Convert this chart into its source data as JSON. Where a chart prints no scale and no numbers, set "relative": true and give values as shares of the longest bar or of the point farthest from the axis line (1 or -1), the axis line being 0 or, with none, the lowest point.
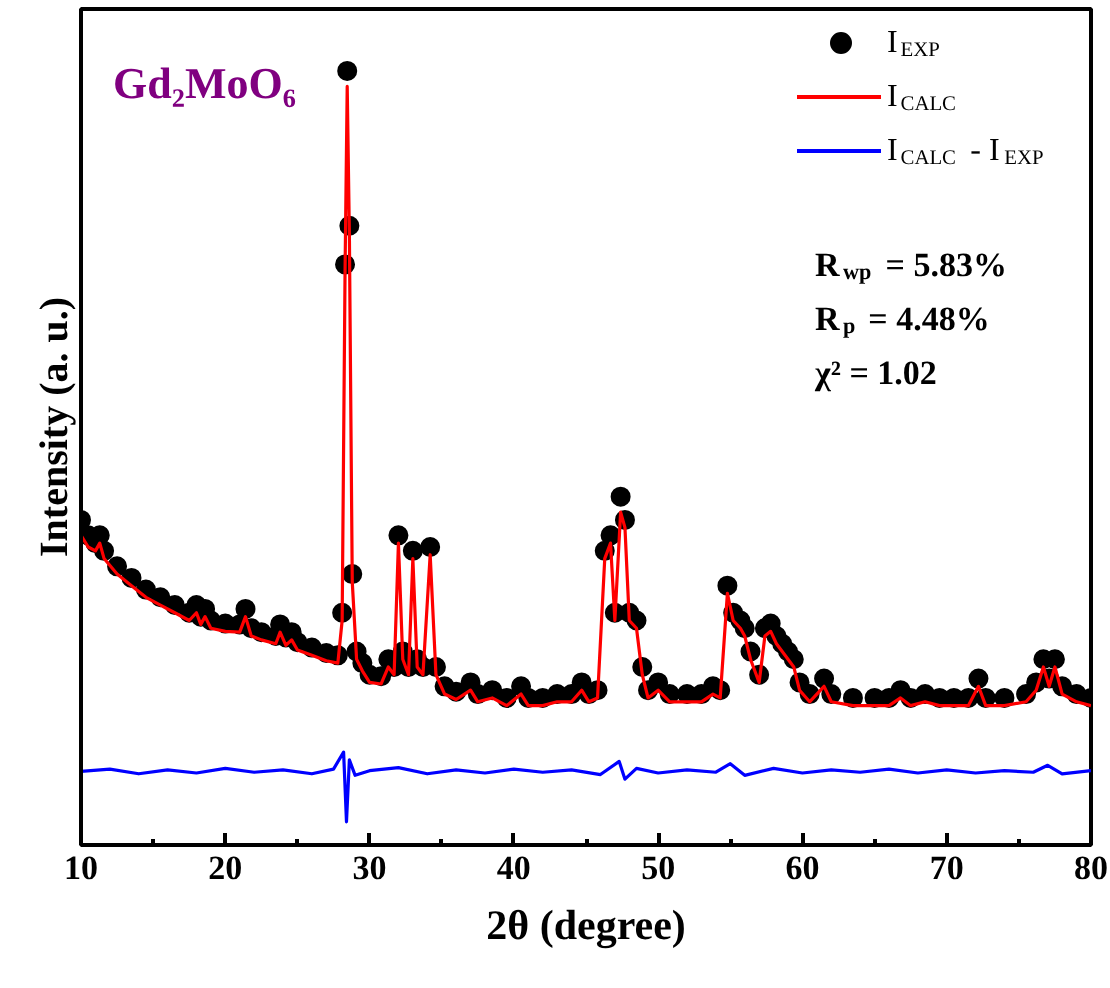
{
  "chart_data": {
    "type": "scatter",
    "title": "Gd₂MoO₆",
    "xlabel": "2θ (degree)",
    "ylabel": "Intensity (a. u.)",
    "relative": true,
    "tick_labels": "x",
    "legend": "top right",
    "xlim": [
      10,
      80
    ],
    "xticks": [
      10,
      20,
      30,
      40,
      50,
      60,
      70,
      80
    ],
    "annotations": [
      "R$_{wp}$ = 5.83%",
      "R$_{p}$ = 4.48%",
      "χ² = 1.02"
    ],
    "x": [
      10.0,
      10.5,
      11.0,
      11.3,
      11.6,
      12.5,
      13.5,
      14.5,
      15.5,
      16.5,
      17.5,
      18.0,
      18.3,
      18.6,
      19.0,
      20.0,
      21.0,
      21.4,
      21.8,
      22.5,
      23.5,
      23.8,
      24.2,
      24.6,
      25.0,
      26.0,
      27.0,
      27.8,
      28.1,
      28.3,
      28.45,
      28.6,
      28.8,
      29.1,
      29.5,
      30.0,
      30.8,
      31.3,
      31.7,
      32.0,
      32.3,
      32.7,
      33.0,
      33.3,
      33.7,
      34.2,
      34.6,
      35.2,
      36.0,
      37.0,
      37.5,
      38.5,
      39.5,
      40.5,
      41.0,
      42.0,
      43.0,
      44.0,
      44.7,
      45.2,
      45.8,
      46.3,
      46.7,
      47.0,
      47.4,
      47.7,
      48.0,
      48.5,
      48.9,
      49.3,
      50.0,
      50.8,
      52.0,
      53.0,
      53.8,
      54.3,
      54.8,
      55.2,
      55.7,
      56.0,
      56.4,
      57.0,
      57.4,
      57.8,
      58.2,
      58.6,
      59.0,
      59.4,
      59.8,
      60.5,
      61.5,
      62.0,
      63.5,
      65.0,
      66.0,
      66.8,
      67.5,
      68.5,
      69.5,
      70.5,
      71.5,
      72.2,
      72.7,
      74.0,
      75.5,
      76.2,
      76.7,
      77.1,
      77.5,
      78.0,
      79.0,
      80.0
    ],
    "series": [
      {
        "name": "I$_{EXP}$",
        "marker": "circle",
        "color": "#000000",
        "values": [
          0.42,
          0.4,
          0.39,
          0.4,
          0.38,
          0.36,
          0.345,
          0.33,
          0.32,
          0.31,
          0.3,
          0.31,
          0.295,
          0.305,
          0.29,
          0.286,
          0.285,
          0.305,
          0.28,
          0.275,
          0.27,
          0.285,
          0.268,
          0.275,
          0.262,
          0.255,
          0.248,
          0.245,
          0.3,
          0.75,
          1.0,
          0.8,
          0.35,
          0.25,
          0.235,
          0.22,
          0.218,
          0.24,
          0.23,
          0.4,
          0.25,
          0.23,
          0.38,
          0.24,
          0.23,
          0.385,
          0.23,
          0.205,
          0.198,
          0.21,
          0.195,
          0.2,
          0.19,
          0.205,
          0.19,
          0.19,
          0.195,
          0.195,
          0.21,
          0.195,
          0.2,
          0.38,
          0.4,
          0.3,
          0.45,
          0.42,
          0.3,
          0.29,
          0.23,
          0.2,
          0.21,
          0.195,
          0.195,
          0.195,
          0.205,
          0.2,
          0.335,
          0.3,
          0.29,
          0.28,
          0.25,
          0.22,
          0.28,
          0.286,
          0.27,
          0.26,
          0.25,
          0.24,
          0.21,
          0.195,
          0.215,
          0.195,
          0.19,
          0.19,
          0.19,
          0.2,
          0.19,
          0.195,
          0.19,
          0.19,
          0.19,
          0.215,
          0.19,
          0.19,
          0.195,
          0.21,
          0.24,
          0.215,
          0.24,
          0.205,
          0.195,
          0.19
        ]
      },
      {
        "name": "I$_{CALC}$",
        "type": "line",
        "color": "#ff0000",
        "values": [
          0.4,
          0.385,
          0.38,
          0.39,
          0.37,
          0.35,
          0.335,
          0.32,
          0.31,
          0.3,
          0.29,
          0.3,
          0.285,
          0.295,
          0.28,
          0.276,
          0.275,
          0.295,
          0.27,
          0.265,
          0.26,
          0.275,
          0.258,
          0.265,
          0.252,
          0.245,
          0.238,
          0.235,
          0.29,
          0.74,
          0.98,
          0.79,
          0.34,
          0.24,
          0.225,
          0.21,
          0.208,
          0.23,
          0.22,
          0.39,
          0.24,
          0.22,
          0.37,
          0.23,
          0.22,
          0.375,
          0.22,
          0.195,
          0.188,
          0.2,
          0.185,
          0.19,
          0.18,
          0.195,
          0.18,
          0.18,
          0.185,
          0.185,
          0.2,
          0.185,
          0.19,
          0.37,
          0.39,
          0.29,
          0.43,
          0.41,
          0.29,
          0.28,
          0.22,
          0.19,
          0.2,
          0.185,
          0.185,
          0.185,
          0.195,
          0.19,
          0.325,
          0.29,
          0.28,
          0.27,
          0.24,
          0.21,
          0.27,
          0.276,
          0.26,
          0.25,
          0.24,
          0.23,
          0.2,
          0.185,
          0.205,
          0.185,
          0.18,
          0.18,
          0.18,
          0.19,
          0.18,
          0.185,
          0.18,
          0.18,
          0.18,
          0.205,
          0.18,
          0.18,
          0.185,
          0.2,
          0.23,
          0.205,
          0.23,
          0.195,
          0.185,
          0.18
        ]
      },
      {
        "name": "I$_{CALC}$ - I$_{EXP}$",
        "type": "line",
        "color": "#0000ff",
        "x": [
          10,
          12,
          14,
          16,
          18,
          20,
          22,
          24,
          26,
          27.5,
          28.2,
          28.4,
          28.6,
          29,
          30,
          32,
          34,
          36,
          38,
          40,
          42,
          44,
          46,
          47.3,
          47.7,
          48.5,
          50,
          52,
          54,
          55,
          56,
          58,
          60,
          62,
          64,
          66,
          68,
          70,
          72,
          74,
          76,
          77,
          78,
          80
        ],
        "values": [
          0.095,
          0.098,
          0.092,
          0.097,
          0.093,
          0.099,
          0.094,
          0.097,
          0.092,
          0.098,
          0.12,
          0.03,
          0.11,
          0.09,
          0.096,
          0.1,
          0.092,
          0.097,
          0.093,
          0.098,
          0.094,
          0.097,
          0.091,
          0.108,
          0.085,
          0.099,
          0.093,
          0.097,
          0.094,
          0.105,
          0.09,
          0.099,
          0.093,
          0.097,
          0.094,
          0.098,
          0.093,
          0.097,
          0.093,
          0.096,
          0.094,
          0.103,
          0.092,
          0.096
        ]
      }
    ]
  }
}
